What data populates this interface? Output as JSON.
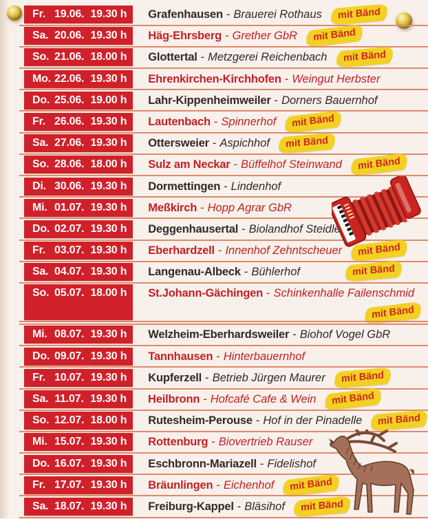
{
  "page": {
    "dash": "-",
    "badge_label": "mit Bänd",
    "colors": {
      "background": "#f8f0ea",
      "date_box_red": "#d0202a",
      "location_dark": "#2f2a28",
      "location_red": "#c32026",
      "separator_line": "#dd8a6b",
      "badge_background": "#f2d122",
      "badge_text": "#d0251c",
      "pin_gold": "#c8a22b"
    },
    "icons": [
      "pin-icon",
      "accordion-icon",
      "stag-icon"
    ]
  },
  "events": [
    {
      "day": "Fr.",
      "date": "19.06.",
      "time": "19.30 h",
      "location": "Grafenhausen",
      "venue": "Brauerei Rothaus",
      "color": "dark",
      "badge": true,
      "badge_pos": "inline"
    },
    {
      "day": "Sa.",
      "date": "20.06.",
      "time": "19.30 h",
      "location": "Häg-Ehrsberg",
      "venue": "Grether GbR",
      "color": "red",
      "badge": true,
      "badge_pos": "inline"
    },
    {
      "day": "So.",
      "date": "21.06.",
      "time": "18.00 h",
      "location": "Glottertal",
      "venue": "Metzgerei Reichenbach",
      "color": "dark",
      "badge": true,
      "badge_pos": "inline"
    },
    {
      "day": "Mo.",
      "date": "22.06.",
      "time": "19.30 h",
      "location": "Ehrenkirchen-Kirchhofen",
      "venue": "Weingut Herbster",
      "color": "red",
      "badge": false
    },
    {
      "day": "Do.",
      "date": "25.06.",
      "time": "19.00 h",
      "location": "Lahr-Kippenheimweiler",
      "venue": "Dorners Bauernhof",
      "color": "dark",
      "badge": false
    },
    {
      "day": "Fr.",
      "date": "26.06.",
      "time": "19.30 h",
      "location": "Lautenbach",
      "venue": "Spinnerhof",
      "color": "red",
      "badge": true,
      "badge_pos": "inline"
    },
    {
      "day": "Sa.",
      "date": "27.06.",
      "time": "19.30 h",
      "location": "Ottersweier",
      "venue": "Aspichhof",
      "color": "dark",
      "badge": true,
      "badge_pos": "inline"
    },
    {
      "day": "So.",
      "date": "28.06.",
      "time": "18.00 h",
      "location": "Sulz am Neckar",
      "venue": "Büffelhof Steinwand",
      "color": "red",
      "badge": true,
      "badge_pos": "inline"
    },
    {
      "day": "Di.",
      "date": "30.06.",
      "time": "19.30 h",
      "location": "Dormettingen",
      "venue": "Lindenhof",
      "color": "dark",
      "badge": false
    },
    {
      "day": "Mi.",
      "date": "01.07.",
      "time": "19.30 h",
      "location": "Meßkirch",
      "venue": "Hopp Agrar GbR",
      "color": "red",
      "badge": false
    },
    {
      "day": "Do.",
      "date": "02.07.",
      "time": "19.30 h",
      "location": "Deggenhausertal",
      "venue": "Biolandhof Steidle",
      "color": "dark",
      "badge": false
    },
    {
      "day": "Fr.",
      "date": "03.07.",
      "time": "19.30 h",
      "location": "Eberhardzell",
      "venue": "Innenhof Zehntscheuer",
      "color": "red",
      "badge": true,
      "badge_pos": "inline"
    },
    {
      "day": "Sa.",
      "date": "04.07.",
      "time": "19.30 h",
      "location": "Langenau-Albeck",
      "venue": "Bühlerhof",
      "color": "dark",
      "badge": true,
      "badge_pos": "right"
    },
    {
      "day": "So.",
      "date": "05.07.",
      "time": "18.00 h",
      "location": "St.Johann-Gächingen",
      "venue": "Schinkenhalle Failenschmid",
      "color": "red",
      "badge": true,
      "badge_pos": "newline-right",
      "tall": true
    },
    {
      "day": "Mi.",
      "date": "08.07.",
      "time": "19.30 h",
      "location": "Welzheim-Eberhardsweiler",
      "venue": "Biohof Vogel GbR",
      "color": "dark",
      "badge": false
    },
    {
      "day": "Do.",
      "date": "09.07.",
      "time": "19.30 h",
      "location": "Tannhausen",
      "venue": "Hinterbauernhof",
      "color": "red",
      "badge": false
    },
    {
      "day": "Fr.",
      "date": "10.07.",
      "time": "19.30 h",
      "location": "Kupferzell",
      "venue": "Betrieb Jürgen Maurer",
      "color": "dark",
      "badge": true,
      "badge_pos": "inline"
    },
    {
      "day": "Sa.",
      "date": "11.07.",
      "time": "19.30 h",
      "location": "Heilbronn",
      "venue": "Hofcafé Cafe & Wein",
      "color": "red",
      "badge": true,
      "badge_pos": "inline"
    },
    {
      "day": "So.",
      "date": "12.07.",
      "time": "18.00 h",
      "location": "Rutesheim-Perouse",
      "venue": "Hof in der Pinadelle",
      "color": "dark",
      "badge": true,
      "badge_pos": "inline"
    },
    {
      "day": "Mi.",
      "date": "15.07.",
      "time": "19.30 h",
      "location": "Rottenburg",
      "venue": "Biovertrieb Rauser",
      "color": "red",
      "badge": false
    },
    {
      "day": "Do.",
      "date": "16.07.",
      "time": "19.30 h",
      "location": "Eschbronn-Mariazell",
      "venue": "Fidelishof",
      "color": "dark",
      "badge": false
    },
    {
      "day": "Fr.",
      "date": "17.07.",
      "time": "19.30 h",
      "location": "Bräunlingen",
      "venue": "Eichenhof",
      "color": "red",
      "badge": true,
      "badge_pos": "inline"
    },
    {
      "day": "Sa.",
      "date": "18.07.",
      "time": "19.30 h",
      "location": "Freiburg-Kappel",
      "venue": "Bläsihof",
      "color": "dark",
      "badge": true,
      "badge_pos": "inline"
    }
  ]
}
